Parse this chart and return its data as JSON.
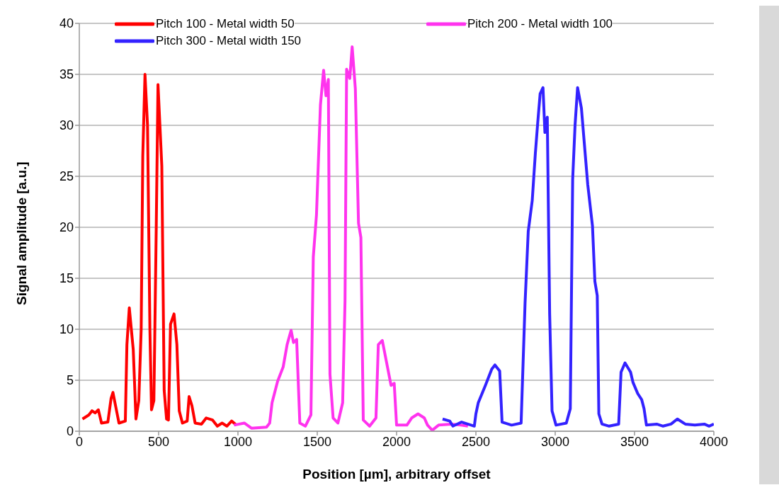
{
  "chart_data": {
    "type": "line",
    "xlabel": "Position [µm], arbitrary offset",
    "ylabel": "Signal amplitude [a.u.]",
    "xlim": [
      0,
      4000
    ],
    "xticks": [
      0,
      500,
      1000,
      1500,
      2000,
      2500,
      3000,
      3500,
      4000
    ],
    "ylim": [
      0,
      40
    ],
    "yticks": [
      0,
      5,
      10,
      15,
      20,
      25,
      30,
      35,
      40
    ],
    "grid": "y",
    "legend": "top",
    "marker": "none",
    "line_style": "solid",
    "series": [
      {
        "name": "Pitch 100 - Metal width 50",
        "color": "#ff0000",
        "x": [
          20,
          60,
          80,
          100,
          120,
          140,
          180,
          200,
          212,
          250,
          290,
          300,
          315,
          340,
          357,
          375,
          390,
          400,
          414,
          430,
          445,
          455,
          470,
          485,
          496,
          520,
          535,
          550,
          562,
          575,
          597,
          615,
          630,
          650,
          680,
          692,
          710,
          730,
          770,
          800,
          840,
          870,
          900,
          930,
          960,
          990
        ],
        "values": [
          1.2,
          1.6,
          2.0,
          1.8,
          2.1,
          0.8,
          0.9,
          3.2,
          3.8,
          0.8,
          1.0,
          8.5,
          12.1,
          8.0,
          1.2,
          3.0,
          10,
          27,
          35,
          30,
          10,
          2.1,
          3,
          20,
          34,
          26,
          4,
          1.2,
          1.1,
          10.5,
          11.5,
          8.5,
          2.0,
          0.8,
          1.0,
          3.4,
          2.5,
          0.8,
          0.7,
          1.3,
          1.1,
          0.5,
          0.8,
          0.5,
          1.0,
          0.6
        ]
      },
      {
        "name": "Pitch 200 - Metal width 100",
        "color": "#ff33ee",
        "x": [
          975,
          1040,
          1085,
          1180,
          1200,
          1215,
          1250,
          1285,
          1310,
          1335,
          1350,
          1370,
          1390,
          1425,
          1460,
          1475,
          1495,
          1520,
          1540,
          1555,
          1570,
          1580,
          1600,
          1630,
          1660,
          1675,
          1685,
          1705,
          1720,
          1740,
          1760,
          1775,
          1790,
          1830,
          1870,
          1885,
          1910,
          1945,
          1965,
          1985,
          2000,
          2065,
          2095,
          2135,
          2175,
          2195,
          2225,
          2265,
          2345,
          2405,
          2450
        ],
        "values": [
          0.6,
          0.8,
          0.3,
          0.4,
          0.8,
          2.8,
          4.9,
          6.3,
          8.5,
          9.9,
          8.7,
          9.0,
          0.8,
          0.5,
          1.6,
          17.1,
          21.2,
          32.0,
          35.4,
          32.9,
          34.5,
          5.6,
          1.3,
          0.8,
          2.8,
          12.8,
          35.5,
          34.6,
          37.7,
          33.6,
          20.4,
          19.0,
          1.1,
          0.5,
          1.3,
          8.5,
          8.9,
          6.1,
          4.5,
          4.7,
          0.6,
          0.6,
          1.3,
          1.7,
          1.3,
          0.6,
          0.1,
          0.6,
          0.7,
          0.6,
          0.5
        ]
      },
      {
        "name": "Pitch 300 - Metal width 150",
        "color": "#3322ff",
        "x": [
          2290,
          2335,
          2355,
          2410,
          2470,
          2490,
          2500,
          2515,
          2560,
          2600,
          2620,
          2650,
          2665,
          2725,
          2785,
          2810,
          2830,
          2855,
          2875,
          2890,
          2905,
          2923,
          2935,
          2950,
          2965,
          2980,
          3005,
          3070,
          3095,
          3110,
          3125,
          3141,
          3165,
          3205,
          3235,
          3250,
          3265,
          3275,
          3295,
          3340,
          3400,
          3415,
          3440,
          3475,
          3490,
          3520,
          3545,
          3560,
          3575,
          3640,
          3680,
          3730,
          3770,
          3820,
          3880,
          3940,
          3970,
          4000
        ],
        "values": [
          1.2,
          1.0,
          0.5,
          0.9,
          0.6,
          0.5,
          1.7,
          2.8,
          4.5,
          6.1,
          6.5,
          5.9,
          0.9,
          0.6,
          0.8,
          12.6,
          19.6,
          22.6,
          27.3,
          30.3,
          33.1,
          33.7,
          29.3,
          30.8,
          11.5,
          2.0,
          0.6,
          0.8,
          2.2,
          24.7,
          30.0,
          33.7,
          31.7,
          24.2,
          20.1,
          14.7,
          13.3,
          1.7,
          0.7,
          0.5,
          0.7,
          5.8,
          6.7,
          5.8,
          4.8,
          3.7,
          3.1,
          2.2,
          0.6,
          0.7,
          0.5,
          0.7,
          1.2,
          0.7,
          0.6,
          0.7,
          0.5,
          0.7
        ]
      }
    ]
  }
}
